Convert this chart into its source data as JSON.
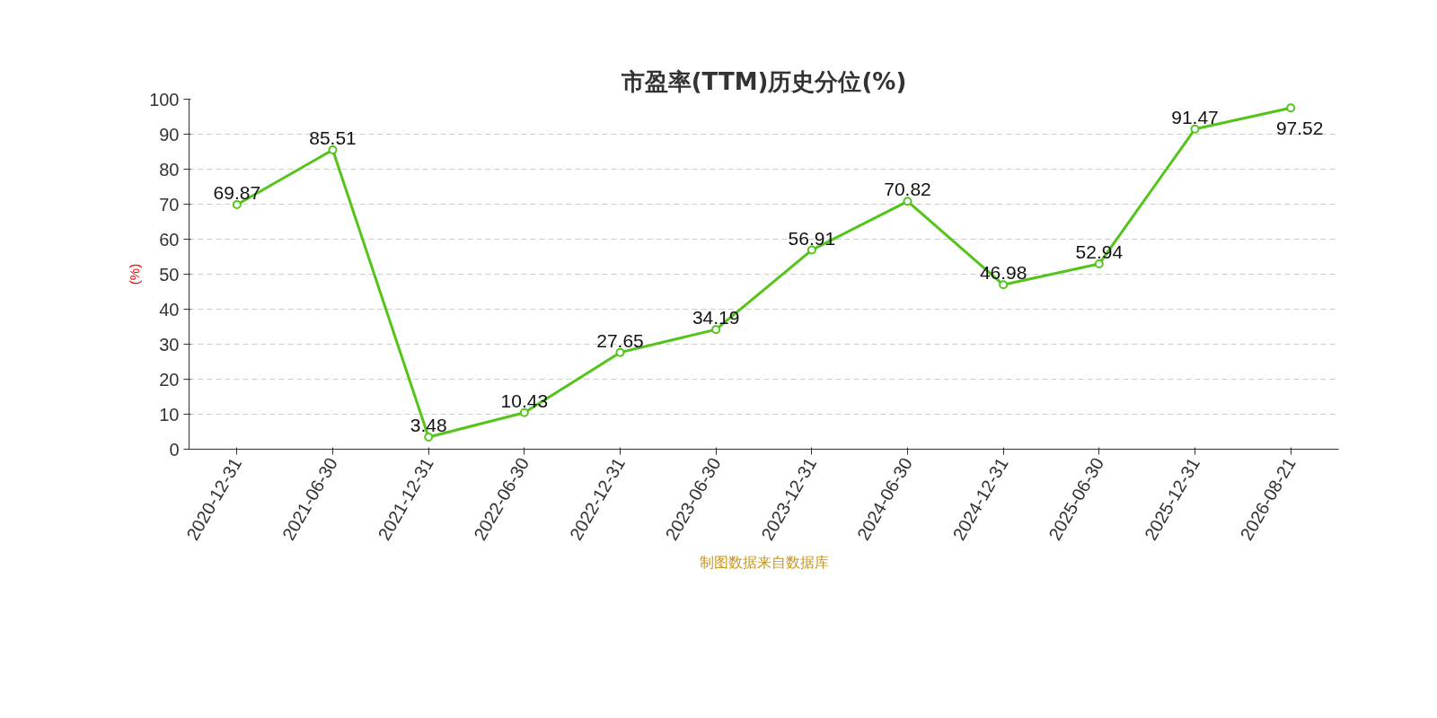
{
  "chart_data": {
    "type": "line",
    "title": "市盈率(TTM)历史分位(%)",
    "ylabel": "(%)",
    "categories": [
      "2020-12-31",
      "2021-06-30",
      "2021-12-31",
      "2022-06-30",
      "2022-12-31",
      "2023-06-30",
      "2023-12-31",
      "2024-06-30",
      "2024-12-31",
      "2025-06-30",
      "2025-12-31",
      "2026-08-21"
    ],
    "series": [
      {
        "color": "#52c41a",
        "values": [
          69.87,
          85.51,
          3.48,
          10.43,
          27.65,
          34.19,
          56.91,
          70.82,
          46.98,
          52.94,
          91.47,
          97.52
        ]
      }
    ],
    "ylim": [
      0,
      100
    ],
    "yticks": [
      0,
      10,
      20,
      30,
      40,
      50,
      60,
      70,
      80,
      90,
      100
    ],
    "grid": "y",
    "marker": "circle",
    "data_labels": true,
    "annotations": [
      "制图数据来自数据库"
    ]
  }
}
